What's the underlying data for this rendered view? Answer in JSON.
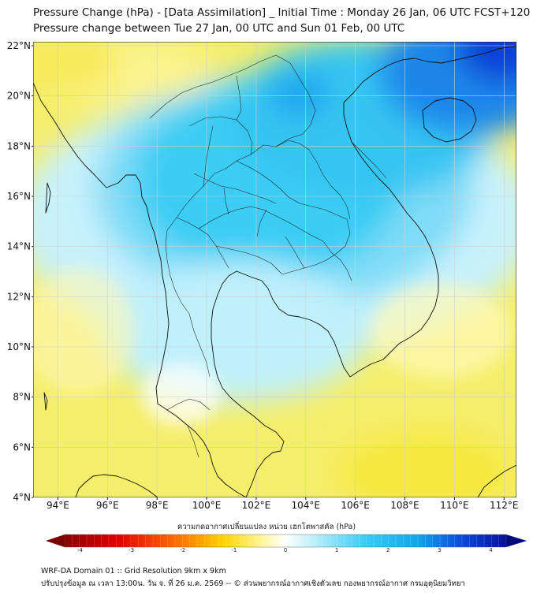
{
  "title_line1": "Pressure Change (hPa) - [Data Assimilation] _ Initial Time : Monday 26 Jan, 06 UTC FCST+120",
  "title_line2": "Pressure change between Tue 27 Jan, 00 UTC and Sun 01 Feb, 00 UTC",
  "map": {
    "lat_labels": [
      "22°N",
      "20°N",
      "18°N",
      "16°N",
      "14°N",
      "12°N",
      "10°N",
      "8°N",
      "6°N",
      "4°N"
    ],
    "lon_labels": [
      "94°E",
      "96°E",
      "98°E",
      "100°E",
      "102°E",
      "104°E",
      "106°E",
      "108°E",
      "110°E",
      "112°E"
    ],
    "lat_values": [
      22,
      20,
      18,
      16,
      14,
      12,
      10,
      8,
      6,
      4
    ],
    "lon_values": [
      94,
      96,
      98,
      100,
      102,
      104,
      106,
      108,
      110,
      112
    ]
  },
  "colorbar": {
    "title": "ความกดอากาศเปลี่ยนแปลง หน่วย เฮกโตพาสคัล (hPa)",
    "ticks": [
      "-4",
      "-3",
      "-2",
      "-1",
      "0",
      "1",
      "2",
      "3",
      "4"
    ],
    "tick_values": [
      -4,
      -3,
      -2,
      -1,
      0,
      1,
      2,
      3,
      4
    ]
  },
  "footer_line1": "WRF-DA Domain 01 :: Grid Resolution 9km x 9km",
  "footer_line2": "ปรับปรุงข้อมูล ณ เวลา 13:00น. วัน จ. ที่ 26 ม.ค. 2569 -- © ส่วนพยากรณ์อากาศเชิงตัวเลข กองพยากรณ์อากาศ กรมอุตุนิยมวิทยา",
  "colors": {
    "blue_dark": "#0b3fd6",
    "cyan": "#21c3f3",
    "pale_cyan": "#c9f2fb",
    "white": "#ffffff",
    "yellow": "#f8ee52",
    "dark_red": "#8b0000"
  }
}
